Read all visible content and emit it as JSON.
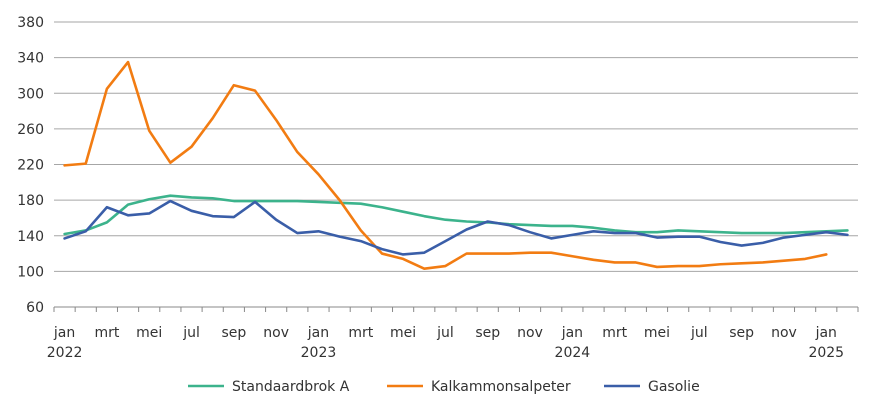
{
  "chart_data": {
    "type": "line",
    "title": "",
    "xlabel": "",
    "ylabel": "",
    "ylim": [
      60,
      380
    ],
    "yticks": [
      60,
      100,
      140,
      180,
      220,
      260,
      300,
      340,
      380
    ],
    "grid": true,
    "legend_position": "bottom",
    "x": [
      "2022-01",
      "2022-02",
      "2022-03",
      "2022-04",
      "2022-05",
      "2022-06",
      "2022-07",
      "2022-08",
      "2022-09",
      "2022-10",
      "2022-11",
      "2022-12",
      "2023-01",
      "2023-02",
      "2023-03",
      "2023-04",
      "2023-05",
      "2023-06",
      "2023-07",
      "2023-08",
      "2023-09",
      "2023-10",
      "2023-11",
      "2023-12",
      "2024-01",
      "2024-02",
      "2024-03",
      "2024-04",
      "2024-05",
      "2024-06",
      "2024-07",
      "2024-08",
      "2024-09",
      "2024-10",
      "2024-11",
      "2024-12",
      "2025-01",
      "2025-02"
    ],
    "x_tick_labels": [
      {
        "month": "jan",
        "year": "2022",
        "index": 0
      },
      {
        "month": "mrt",
        "year": "",
        "index": 2
      },
      {
        "month": "mei",
        "year": "",
        "index": 4
      },
      {
        "month": "jul",
        "year": "",
        "index": 6
      },
      {
        "month": "sep",
        "year": "",
        "index": 8
      },
      {
        "month": "nov",
        "year": "",
        "index": 10
      },
      {
        "month": "jan",
        "year": "2023",
        "index": 12
      },
      {
        "month": "mrt",
        "year": "",
        "index": 14
      },
      {
        "month": "mei",
        "year": "",
        "index": 16
      },
      {
        "month": "jul",
        "year": "",
        "index": 18
      },
      {
        "month": "sep",
        "year": "",
        "index": 20
      },
      {
        "month": "nov",
        "year": "",
        "index": 22
      },
      {
        "month": "jan",
        "year": "2024",
        "index": 24
      },
      {
        "month": "mrt",
        "year": "",
        "index": 26
      },
      {
        "month": "mei",
        "year": "",
        "index": 28
      },
      {
        "month": "jul",
        "year": "",
        "index": 30
      },
      {
        "month": "sep",
        "year": "",
        "index": 32
      },
      {
        "month": "nov",
        "year": "",
        "index": 34
      },
      {
        "month": "jan",
        "year": "2025",
        "index": 36
      }
    ],
    "series": [
      {
        "name": "Standaardbrok A",
        "color": "#3cb38c",
        "values": [
          142,
          146,
          155,
          175,
          181,
          185,
          183,
          182,
          179,
          179,
          179,
          179,
          178,
          177,
          176,
          172,
          167,
          162,
          158,
          156,
          155,
          153,
          152,
          151,
          151,
          149,
          146,
          144,
          144,
          146,
          145,
          144,
          143,
          143,
          143,
          144,
          145,
          146
        ]
      },
      {
        "name": "Kalkammonsalpeter",
        "color": "#f27c12",
        "values": [
          219,
          221,
          305,
          335,
          258,
          222,
          240,
          272,
          309,
          303,
          270,
          234,
          209,
          180,
          146,
          120,
          114,
          103,
          106,
          120,
          120,
          120,
          121,
          121,
          117,
          113,
          110,
          110,
          105,
          106,
          106,
          108,
          109,
          110,
          112,
          114,
          119,
          null
        ]
      },
      {
        "name": "Gasolie",
        "color": "#3a5ea8",
        "values": [
          137,
          145,
          172,
          163,
          165,
          179,
          168,
          162,
          161,
          178,
          158,
          143,
          145,
          139,
          134,
          125,
          119,
          121,
          134,
          147,
          156,
          152,
          144,
          137,
          141,
          145,
          143,
          143,
          138,
          139,
          139,
          133,
          129,
          132,
          138,
          141,
          144,
          141
        ]
      }
    ]
  }
}
